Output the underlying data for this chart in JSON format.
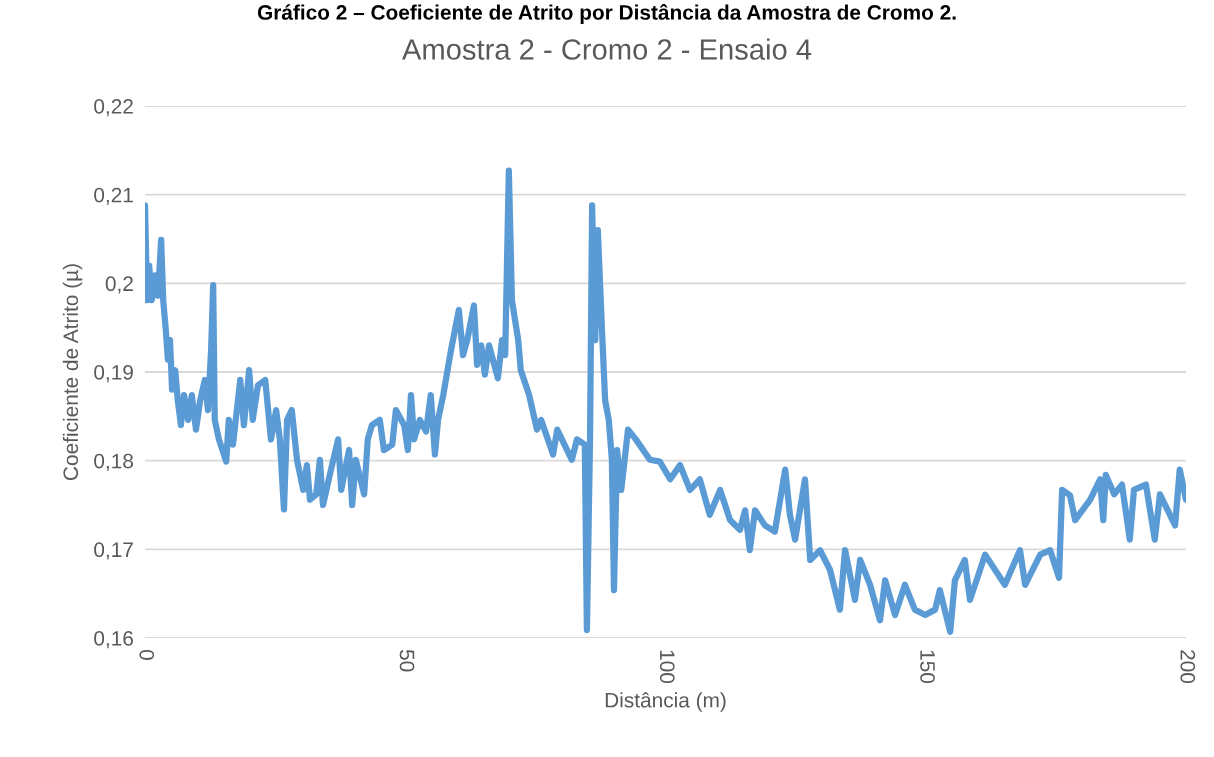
{
  "chart_data": {
    "type": "line",
    "title": "Gráfico 2 – Coeficiente de Atrito por Distância da Amostra de Cromo 2.",
    "subtitle": "Amostra 2 - Cromo 2 - Ensaio 4",
    "xlabel": "Distância (m)",
    "ylabel": "Coeficiente de Atrito (µ)",
    "xlim": [
      0,
      200
    ],
    "xticks": [
      0,
      50,
      100,
      150,
      200
    ],
    "ylim": [
      0.16,
      0.22
    ],
    "yticks": [
      {
        "value": 0.16,
        "label": "0,16"
      },
      {
        "value": 0.17,
        "label": "0,17"
      },
      {
        "value": 0.18,
        "label": "0,18"
      },
      {
        "value": 0.19,
        "label": "0,19"
      },
      {
        "value": 0.2,
        "label": "0,2"
      },
      {
        "value": 0.21,
        "label": "0,21"
      },
      {
        "value": 0.22,
        "label": "0,22"
      }
    ],
    "grid": "y",
    "legend": false,
    "marker": "none",
    "line_style": "solid",
    "series": [
      {
        "color": "#5b9bd5",
        "x": [
          0,
          0.4,
          0.8,
          1.3,
          1.9,
          2.5,
          3.1,
          3.5,
          4.0,
          4.4,
          4.8,
          5.2,
          5.8,
          6.3,
          6.9,
          7.5,
          8.3,
          9.0,
          9.8,
          10.6,
          11.5,
          12.1,
          12.7,
          13.1,
          13.4,
          14.2,
          15.6,
          16.1,
          16.9,
          18.3,
          19.0,
          20.0,
          20.7,
          21.7,
          23.1,
          24.2,
          25.2,
          25.9,
          26.7,
          27.3,
          28.2,
          29.2,
          30.4,
          31.1,
          31.7,
          32.9,
          33.6,
          34.2,
          35.5,
          37.1,
          37.7,
          39.2,
          39.8,
          40.5,
          42.1,
          42.8,
          43.6,
          45.1,
          45.9,
          47.5,
          48.2,
          49.8,
          50.5,
          51.1,
          51.7,
          52.8,
          54.0,
          54.9,
          55.7,
          56.3,
          57.3,
          58.8,
          60.3,
          61.1,
          61.9,
          63.2,
          63.8,
          64.6,
          65.3,
          66.1,
          67.8,
          68.6,
          69.2,
          69.9,
          70.5,
          71.7,
          72.2,
          73.8,
          75.3,
          76.1,
          78.4,
          79.2,
          82.0,
          83.0,
          84.5,
          84.9,
          85.5,
          85.9,
          86.5,
          87.0,
          87.8,
          88.4,
          89.1,
          89.7,
          90.1,
          90.7,
          91.5,
          92.8,
          94.3,
          97.0,
          98.9,
          100.9,
          102.8,
          104.7,
          106.6,
          108.5,
          110.5,
          112.4,
          114.3,
          115.3,
          116.2,
          117.2,
          119.1,
          121.0,
          123.0,
          123.9,
          124.9,
          126.8,
          127.8,
          129.7,
          131.6,
          133.5,
          134.5,
          136.4,
          137.4,
          139.3,
          141.2,
          142.2,
          144.1,
          146.0,
          147.9,
          149.9,
          151.8,
          152.7,
          154.7,
          155.6,
          157.5,
          158.5,
          161.4,
          165.2,
          168.1,
          169.1,
          172.0,
          173.9,
          175.6,
          176.2,
          177.7,
          178.7,
          181.6,
          183.5,
          184.1,
          184.6,
          186.2,
          187.7,
          189.2,
          190.0,
          192.3,
          194.0,
          195.0,
          197.9,
          198.8,
          200.0
        ],
        "values": [
          0.2088,
          0.1981,
          0.202,
          0.1981,
          0.2009,
          0.1986,
          0.2049,
          0.1981,
          0.1947,
          0.1914,
          0.1936,
          0.188,
          0.1902,
          0.1868,
          0.184,
          0.1874,
          0.1846,
          0.1874,
          0.1835,
          0.1868,
          0.1891,
          0.1857,
          0.1925,
          0.1998,
          0.1846,
          0.1824,
          0.1799,
          0.1846,
          0.1818,
          0.1891,
          0.184,
          0.1902,
          0.1846,
          0.1885,
          0.1891,
          0.1824,
          0.1857,
          0.1824,
          0.1745,
          0.1846,
          0.1857,
          0.1801,
          0.1767,
          0.1795,
          0.1756,
          0.1762,
          0.1801,
          0.175,
          0.1784,
          0.1824,
          0.1767,
          0.1812,
          0.175,
          0.1801,
          0.1762,
          0.1824,
          0.184,
          0.1846,
          0.1812,
          0.1818,
          0.1857,
          0.184,
          0.1812,
          0.1874,
          0.1824,
          0.1846,
          0.1833,
          0.1874,
          0.1807,
          0.1846,
          0.1874,
          0.1925,
          0.197,
          0.1919,
          0.1936,
          0.1975,
          0.1908,
          0.193,
          0.1897,
          0.193,
          0.1893,
          0.1936,
          0.1919,
          0.2127,
          0.1981,
          0.1936,
          0.1902,
          0.1874,
          0.1835,
          0.1846,
          0.1807,
          0.1835,
          0.1801,
          0.1824,
          0.1818,
          0.1609,
          0.1824,
          0.2088,
          0.1936,
          0.206,
          0.1947,
          0.1868,
          0.1846,
          0.1801,
          0.1654,
          0.1812,
          0.1767,
          0.1835,
          0.1824,
          0.1801,
          0.1799,
          0.1779,
          0.1795,
          0.1767,
          0.1779,
          0.1739,
          0.1767,
          0.1733,
          0.1722,
          0.1744,
          0.1699,
          0.1744,
          0.1727,
          0.172,
          0.179,
          0.1739,
          0.1711,
          0.1779,
          0.1688,
          0.1699,
          0.1677,
          0.1632,
          0.1699,
          0.1643,
          0.1688,
          0.166,
          0.162,
          0.1665,
          0.1626,
          0.166,
          0.1632,
          0.1626,
          0.1632,
          0.1654,
          0.1607,
          0.1665,
          0.1688,
          0.1643,
          0.1694,
          0.166,
          0.1699,
          0.166,
          0.1694,
          0.1699,
          0.1668,
          0.1767,
          0.1761,
          0.1733,
          0.1756,
          0.1779,
          0.1733,
          0.1784,
          0.1762,
          0.1773,
          0.1711,
          0.1767,
          0.1773,
          0.1711,
          0.1762,
          0.1727,
          0.179,
          0.1756
        ]
      }
    ]
  }
}
